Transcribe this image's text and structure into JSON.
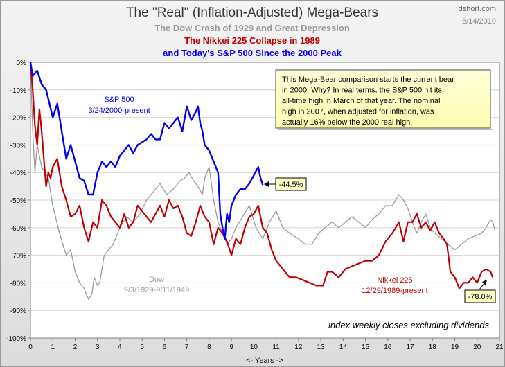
{
  "chart_data": {
    "type": "line",
    "title": "The \"Real\" (Inflation-Adjusted) Mega-Bears",
    "subtitles": [
      {
        "text": "The Dow Crash of 1929 and Great Depression",
        "color": "#999999"
      },
      {
        "text": "The Nikkei 225 Collapse in 1989",
        "color": "#c00000"
      },
      {
        "text": "and Today's S&P 500 Since the 2000 Peak",
        "color": "#0000ee"
      }
    ],
    "source": "dshort.com",
    "date": "8/14/2010",
    "xlabel": "<- Years ->",
    "ylabel": "",
    "xlim": [
      0,
      21
    ],
    "ylim": [
      -100,
      0
    ],
    "xticks": [
      "0",
      "1",
      "2",
      "3",
      "4",
      "5",
      "6",
      "7",
      "8",
      "9",
      "10",
      "11",
      "12",
      "13",
      "14",
      "15",
      "16",
      "17",
      "18",
      "19",
      "20",
      "21"
    ],
    "yticks": [
      "0%",
      "-10%",
      "-20%",
      "-30%",
      "-40%",
      "-50%",
      "-60%",
      "-70%",
      "-80%",
      "-90%",
      "-100%"
    ],
    "grid": true,
    "note": "This Mega-Bear comparison starts  the current bear in 2000.  Why? In real terms, the S&P 500 hit its all-time high in March of that year. The nominal high in 2007, when adjusted for inflation, was actually 16% below the 2000 real high.",
    "footnote": "index weekly closes excluding dividends",
    "series": [
      {
        "name": "Dow",
        "label_lines": [
          "Dow",
          "9/3/1929-9/11/1949"
        ],
        "color": "#999999",
        "x": [
          0,
          0.1,
          0.2,
          0.3,
          0.5,
          0.8,
          1.0,
          1.3,
          1.6,
          1.8,
          2.0,
          2.2,
          2.4,
          2.6,
          2.75,
          2.85,
          3.0,
          3.1,
          3.3,
          3.5,
          3.7,
          4.0,
          4.3,
          4.6,
          4.9,
          5.2,
          5.5,
          5.8,
          6.1,
          6.4,
          6.7,
          6.9,
          7.1,
          7.3,
          7.5,
          7.7,
          7.8,
          8.0,
          8.2,
          8.4,
          8.6,
          8.8,
          9.0,
          9.2,
          9.5,
          9.8,
          10.1,
          10.4,
          10.7,
          11.0,
          11.3,
          11.6,
          12.0,
          12.3,
          12.6,
          12.9,
          13.2,
          13.5,
          13.8,
          14.1,
          14.4,
          14.7,
          15.0,
          15.3,
          15.6,
          15.9,
          16.2,
          16.5,
          16.7,
          16.9,
          17.1,
          17.3,
          17.5,
          17.7,
          17.9,
          18.1,
          18.4,
          18.7,
          19.0,
          19.3,
          19.6,
          19.9,
          20.2,
          20.4,
          20.6,
          20.7,
          20.8
        ],
        "y": [
          0,
          -25,
          -40,
          -30,
          -38,
          -42,
          -52,
          -62,
          -70,
          -68,
          -76,
          -80,
          -82,
          -86,
          -84,
          -78,
          -81,
          -80,
          -70,
          -68,
          -66,
          -60,
          -56,
          -58,
          -55,
          -50,
          -47,
          -44,
          -48,
          -46,
          -43,
          -42,
          -40,
          -43,
          -45,
          -48,
          -42,
          -38,
          -50,
          -58,
          -62,
          -66,
          -64,
          -60,
          -56,
          -52,
          -60,
          -64,
          -58,
          -54,
          -60,
          -62,
          -64,
          -66,
          -66,
          -62,
          -60,
          -58,
          -60,
          -58,
          -56,
          -58,
          -60,
          -57,
          -55,
          -52,
          -52,
          -48,
          -50,
          -53,
          -58,
          -62,
          -58,
          -55,
          -60,
          -62,
          -64,
          -66,
          -68,
          -66,
          -64,
          -63,
          -62,
          -60,
          -57,
          -58,
          -61
        ]
      },
      {
        "name": "Nikkei 225",
        "label_lines": [
          "Nikkei 225",
          "12/29/1989-present"
        ],
        "color": "#c00000",
        "x": [
          0,
          0.1,
          0.2,
          0.3,
          0.4,
          0.5,
          0.6,
          0.7,
          0.8,
          0.9,
          1.0,
          1.2,
          1.4,
          1.6,
          1.8,
          2.0,
          2.2,
          2.4,
          2.6,
          2.8,
          3.0,
          3.2,
          3.4,
          3.6,
          3.8,
          4.0,
          4.2,
          4.4,
          4.6,
          4.8,
          5.0,
          5.2,
          5.4,
          5.6,
          5.8,
          6.0,
          6.2,
          6.4,
          6.6,
          6.8,
          7.0,
          7.2,
          7.4,
          7.6,
          7.8,
          8.0,
          8.2,
          8.4,
          8.6,
          8.8,
          9.0,
          9.2,
          9.4,
          9.6,
          9.8,
          10.0,
          10.2,
          10.4,
          10.6,
          10.8,
          11.0,
          11.3,
          11.6,
          11.9,
          12.2,
          12.5,
          12.8,
          13.1,
          13.3,
          13.5,
          13.8,
          14.1,
          14.4,
          14.7,
          15.0,
          15.3,
          15.6,
          15.9,
          16.2,
          16.5,
          16.7,
          16.9,
          17.1,
          17.3,
          17.5,
          17.7,
          17.9,
          18.1,
          18.3,
          18.5,
          18.65,
          18.8,
          19.0,
          19.2,
          19.4,
          19.6,
          19.8,
          20.0,
          20.2,
          20.4,
          20.6,
          20.7
        ],
        "y": [
          0,
          -10,
          -23,
          -30,
          -17,
          -25,
          -35,
          -45,
          -40,
          -42,
          -38,
          -35,
          -45,
          -50,
          -56,
          -55,
          -52,
          -60,
          -65,
          -58,
          -60,
          -50,
          -52,
          -56,
          -58,
          -60,
          -55,
          -60,
          -58,
          -52,
          -54,
          -56,
          -58,
          -55,
          -52,
          -56,
          -50,
          -53,
          -52,
          -56,
          -62,
          -63,
          -58,
          -52,
          -56,
          -58,
          -66,
          -60,
          -62,
          -65,
          -70,
          -64,
          -66,
          -60,
          -56,
          -55,
          -52,
          -60,
          -62,
          -68,
          -72,
          -75,
          -78,
          -78,
          -79,
          -80,
          -81,
          -81,
          -76,
          -76,
          -78,
          -75,
          -74,
          -73,
          -72,
          -72,
          -70,
          -65,
          -62,
          -58,
          -65,
          -58,
          -58,
          -55,
          -60,
          -58,
          -61,
          -58,
          -62,
          -64,
          -66,
          -76,
          -78,
          -82,
          -80,
          -80,
          -78,
          -80,
          -76,
          -75,
          -76,
          -78
        ]
      },
      {
        "name": "S&P 500",
        "label_lines": [
          "S&P 500",
          "3/24/2000-present"
        ],
        "color": "#0000ee",
        "x": [
          0,
          0.1,
          0.3,
          0.5,
          0.7,
          1.0,
          1.2,
          1.4,
          1.6,
          1.8,
          2.0,
          2.2,
          2.4,
          2.6,
          2.8,
          3.0,
          3.2,
          3.4,
          3.6,
          3.8,
          4.0,
          4.2,
          4.4,
          4.6,
          4.8,
          5.0,
          5.2,
          5.4,
          5.6,
          5.8,
          6.0,
          6.2,
          6.4,
          6.6,
          6.8,
          7.0,
          7.2,
          7.4,
          7.5,
          7.6,
          7.7,
          7.8,
          8.0,
          8.2,
          8.4,
          8.5,
          8.6,
          8.7,
          8.8,
          8.9,
          9.0,
          9.2,
          9.4,
          9.6,
          9.8,
          10.0,
          10.2,
          10.3,
          10.4
        ],
        "y": [
          0,
          -5,
          -3,
          -8,
          -10,
          -20,
          -15,
          -25,
          -35,
          -30,
          -36,
          -42,
          -43,
          -48,
          -48,
          -40,
          -36,
          -38,
          -36,
          -38,
          -34,
          -32,
          -30,
          -33,
          -30,
          -29,
          -28,
          -26,
          -28,
          -28,
          -22,
          -24,
          -22,
          -20,
          -25,
          -16,
          -21,
          -18,
          -16,
          -22,
          -25,
          -30,
          -32,
          -36,
          -40,
          -55,
          -60,
          -64,
          -55,
          -58,
          -52,
          -48,
          -46,
          -46,
          -44,
          -41,
          -38,
          -42,
          -44.5
        ]
      }
    ],
    "callouts": [
      {
        "text": "-44.5%",
        "series": "S&P 500"
      },
      {
        "text": "-78.0%",
        "series": "Nikkei 225"
      }
    ]
  }
}
